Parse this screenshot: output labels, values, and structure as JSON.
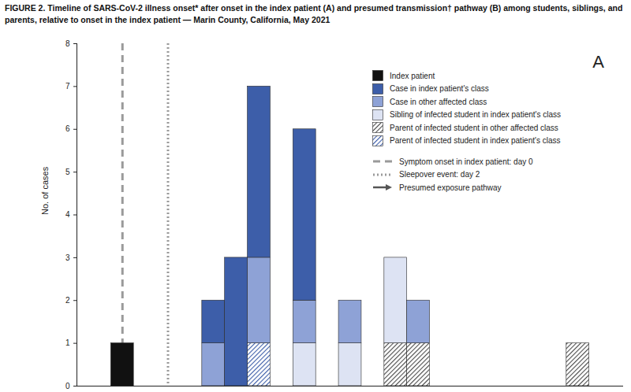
{
  "chart_data": {
    "type": "bar",
    "title": "FIGURE 2. Timeline of SARS-CoV-2 illness onset* after onset in the index patient (A) and presumed transmission† pathway (B) among students, siblings, and parents, relative to onset in the index patient — Marin County, California, May 2021",
    "panel_label": "A",
    "y_label": "No. of cases",
    "x": [
      0,
      4,
      5,
      6,
      8,
      10,
      12,
      13,
      20
    ],
    "series": [
      {
        "name": "Index patient",
        "color": "#111111",
        "values": [
          1,
          0,
          0,
          0,
          0,
          0,
          0,
          0,
          0
        ]
      },
      {
        "name": "Case in index patient's class",
        "color": "#3d5ea9",
        "values": [
          0,
          1,
          3,
          4,
          4,
          0,
          0,
          0,
          0
        ]
      },
      {
        "name": "Case in other affected class",
        "color": "#8ea2d6",
        "values": [
          0,
          1,
          0,
          2,
          1,
          1,
          0,
          1,
          0
        ]
      },
      {
        "name": "Sibling of infected student in index patient's class",
        "color": "#dde3f3",
        "values": [
          0,
          0,
          0,
          0,
          1,
          1,
          2,
          0,
          0
        ]
      },
      {
        "name": "Parent of infected student in other affected class",
        "color": "#4a4a4a",
        "line_style": "hatched",
        "values": [
          0,
          0,
          0,
          0,
          0,
          0,
          1,
          1,
          1
        ]
      },
      {
        "name": "Parent of infected student in index patient's class",
        "color": "#3d5ea9",
        "line_style": "hatched",
        "values": [
          0,
          0,
          0,
          1,
          0,
          0,
          0,
          0,
          0
        ]
      }
    ],
    "stacked": true,
    "xlim": [
      -2,
      22
    ],
    "ylim": [
      0,
      8
    ],
    "yticks": [
      0,
      1,
      2,
      3,
      4,
      5,
      6,
      7,
      8
    ],
    "tick_labels": "y",
    "legend": "top-right",
    "annotations": [
      {
        "x": 0,
        "label": "Symptom onset in index patient: day 0",
        "line_style": "dashed"
      },
      {
        "x": 2,
        "label": "Sleepover event: day 2",
        "line_style": "dotted"
      },
      {
        "label": "Presumed exposure pathway",
        "line_style": "arrow"
      }
    ]
  }
}
